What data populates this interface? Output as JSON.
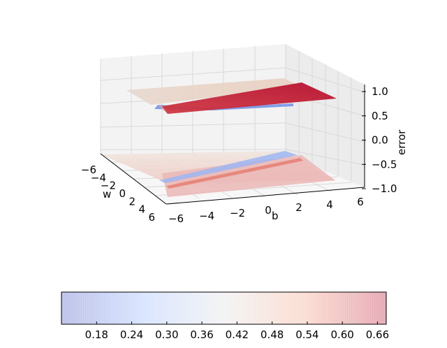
{
  "chart_data": {
    "type": "surface3d",
    "title": "",
    "xlabel": "w",
    "ylabel": "b",
    "zlabel": "error",
    "xlim": [
      -6,
      6
    ],
    "ylim": [
      -6,
      6
    ],
    "zlim": [
      -1.0,
      1.0
    ],
    "x_ticks": [
      "−6",
      "−4",
      "−2",
      "0",
      "2",
      "4",
      "6"
    ],
    "y_ticks": [
      "−6",
      "−4",
      "−2",
      "0",
      "2",
      "4",
      "6"
    ],
    "z_ticks": [
      "−1.0",
      "−0.5",
      "0.0",
      "0.5",
      "1.0"
    ],
    "surfaces": [
      {
        "plane_z": 0.95,
        "description_values": {
          "min": 0.12,
          "max": 0.67
        }
      },
      {
        "plane_z": -1.0,
        "description_values": {
          "min": 0.12,
          "max": 0.67
        }
      }
    ],
    "colormap": "coolwarm",
    "colorbar": {
      "ticks": [
        "0.18",
        "0.24",
        "0.30",
        "0.36",
        "0.42",
        "0.48",
        "0.54",
        "0.60",
        "0.66"
      ],
      "tick_values": [
        0.18,
        0.24,
        0.3,
        0.36,
        0.42,
        0.48,
        0.54,
        0.6,
        0.66
      ],
      "range": [
        0.12,
        0.675
      ]
    },
    "grid": true
  }
}
